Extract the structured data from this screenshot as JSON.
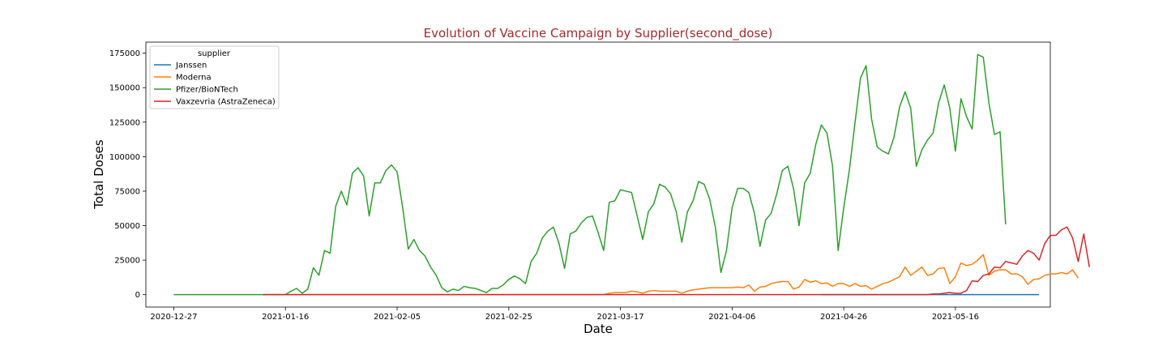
{
  "chart_data": {
    "type": "line",
    "title": "Evolution of Vaccine Campaign by Supplier(second_dose)",
    "title_color": "#a52a2a",
    "xlabel": "Date",
    "ylabel": "Total Doses",
    "x_start": "2020-12-27",
    "x_range": [
      "2020-12-22",
      "2021-06-02"
    ],
    "ylim": [
      -9000,
      183000
    ],
    "x_ticks": [
      "2020-12-27",
      "2021-01-16",
      "2021-02-05",
      "2021-02-25",
      "2021-03-17",
      "2021-04-06",
      "2021-04-26",
      "2021-05-16"
    ],
    "y_ticks": [
      0,
      25000,
      50000,
      75000,
      100000,
      125000,
      150000,
      175000
    ],
    "y_tick_labels": [
      "0",
      "25000",
      "50000",
      "75000",
      "100000",
      "125000",
      "150000",
      "175000"
    ],
    "grid": false,
    "legend": {
      "title": "supplier",
      "position": "top-left"
    },
    "series": [
      {
        "name": "Janssen",
        "color": "#1f77b4",
        "start": "2021-04-22",
        "values": [
          0,
          0,
          0,
          0,
          0,
          0,
          0,
          0,
          0,
          0,
          0,
          0,
          0,
          0,
          0,
          0,
          0,
          0,
          0,
          0,
          0,
          0,
          0,
          0,
          0,
          0,
          0,
          0,
          0,
          0,
          0,
          0,
          0,
          0,
          0,
          0,
          0,
          0,
          0,
          0
        ]
      },
      {
        "name": "Moderna",
        "color": "#ff7f0e",
        "start": "2021-01-12",
        "values": [
          0,
          0,
          0,
          0,
          0,
          0,
          0,
          0,
          0,
          0,
          0,
          0,
          0,
          0,
          0,
          0,
          0,
          0,
          0,
          0,
          0,
          0,
          0,
          0,
          0,
          0,
          0,
          0,
          0,
          0,
          0,
          0,
          0,
          0,
          0,
          0,
          0,
          0,
          0,
          0,
          0,
          0,
          0,
          0,
          0,
          0,
          0,
          0,
          0,
          0,
          0,
          0,
          0,
          0,
          0,
          0,
          0,
          0,
          0,
          0,
          0,
          0,
          1000,
          1500,
          1500,
          1500,
          2500,
          2000,
          1000,
          2500,
          3000,
          2500,
          2500,
          2500,
          2500,
          1000,
          2500,
          3500,
          4000,
          4500,
          5000,
          5000,
          5000,
          5000,
          5000,
          5500,
          5000,
          7000,
          2500,
          5500,
          6000,
          8000,
          9000,
          9500,
          9500,
          4000,
          5500,
          11000,
          9000,
          10000,
          8000,
          8500,
          6000,
          8000,
          8000,
          6000,
          8000,
          6000,
          6500,
          4000,
          6000,
          8000,
          9000,
          11000,
          13000,
          20000,
          14000,
          17000,
          20000,
          14000,
          15000,
          19000,
          19500,
          8000,
          13000,
          23000,
          21000,
          22000,
          25000,
          29000,
          14000,
          17000,
          18000,
          18000,
          15000,
          15000,
          13000,
          7500,
          11000,
          11500,
          14000,
          15000,
          15000,
          16000,
          15000,
          18000,
          12000
        ]
      },
      {
        "name": "Pfizer/BioNTech",
        "color": "#2ca02c",
        "start": "2020-12-27",
        "values": [
          0,
          0,
          0,
          0,
          0,
          0,
          0,
          0,
          0,
          0,
          0,
          0,
          0,
          0,
          0,
          0,
          0,
          0,
          0,
          0,
          0,
          2500,
          4500,
          1000,
          4000,
          19500,
          14000,
          32000,
          30000,
          64000,
          75000,
          65000,
          88000,
          92000,
          86000,
          57000,
          81000,
          81000,
          90000,
          94000,
          89000,
          63000,
          33000,
          40000,
          32000,
          28000,
          20000,
          14000,
          5000,
          2000,
          4000,
          3000,
          6000,
          5000,
          4500,
          3000,
          1500,
          4500,
          4500,
          7000,
          11000,
          13500,
          11500,
          8000,
          24000,
          30000,
          41000,
          46000,
          49000,
          37000,
          19000,
          44000,
          46000,
          52000,
          56000,
          57000,
          45000,
          32000,
          67000,
          68000,
          76000,
          75000,
          74000,
          57000,
          40000,
          60000,
          66000,
          80000,
          78000,
          73000,
          60000,
          38000,
          60000,
          68000,
          82000,
          80000,
          69000,
          49000,
          16000,
          32000,
          63000,
          77000,
          77000,
          74000,
          59000,
          35000,
          54000,
          59000,
          73000,
          90000,
          93000,
          77000,
          50000,
          81000,
          88000,
          109000,
          123000,
          117000,
          93000,
          32000,
          63000,
          90000,
          124000,
          157000,
          166000,
          127000,
          107000,
          104000,
          102000,
          114000,
          136000,
          147000,
          135000,
          93000,
          105000,
          112000,
          117000,
          139000,
          152000,
          135000,
          104000,
          142000,
          129000,
          120000,
          174000,
          172000,
          139000,
          116000,
          118000,
          51000
        ]
      },
      {
        "name": "Vaxzevria (AstraZeneca)",
        "color": "#d62728",
        "start": "2021-01-12",
        "values": [
          0,
          0,
          0,
          0,
          0,
          0,
          0,
          0,
          0,
          0,
          0,
          0,
          0,
          0,
          0,
          0,
          0,
          0,
          0,
          0,
          0,
          0,
          0,
          0,
          0,
          0,
          0,
          0,
          0,
          0,
          0,
          0,
          0,
          0,
          0,
          0,
          0,
          0,
          0,
          0,
          0,
          0,
          0,
          0,
          0,
          0,
          0,
          0,
          0,
          0,
          0,
          0,
          0,
          0,
          0,
          0,
          0,
          0,
          0,
          0,
          0,
          0,
          0,
          0,
          0,
          0,
          0,
          0,
          0,
          0,
          0,
          0,
          0,
          0,
          0,
          0,
          0,
          0,
          0,
          0,
          0,
          0,
          0,
          0,
          0,
          0,
          0,
          0,
          0,
          0,
          0,
          0,
          0,
          0,
          0,
          0,
          0,
          0,
          0,
          0,
          0,
          0,
          0,
          0,
          0,
          0,
          0,
          0,
          0,
          0,
          0,
          0,
          0,
          0,
          0,
          0,
          0,
          0,
          0,
          0,
          500,
          500,
          1000,
          1500,
          1000,
          1000,
          3000,
          10000,
          9500,
          14000,
          15000,
          20000,
          19500,
          24000,
          23000,
          22000,
          28000,
          32000,
          30000,
          25000,
          37000,
          43000,
          43000,
          47000,
          49000,
          41000,
          24000,
          44000,
          20000
        ]
      }
    ]
  }
}
